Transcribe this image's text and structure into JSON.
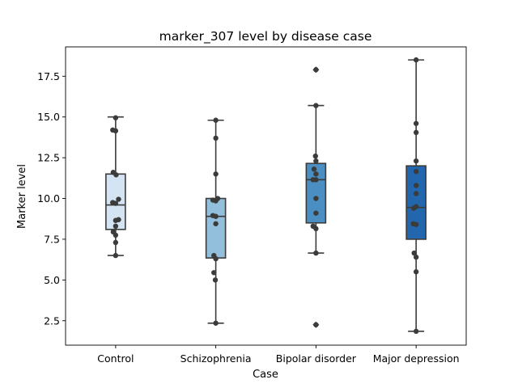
{
  "chart_data": {
    "type": "box",
    "title": "marker_307 level by disease case",
    "xlabel": "Case",
    "ylabel": "Marker level",
    "ylim": [
      1.0,
      19.3
    ],
    "yticks": [
      2.5,
      5.0,
      7.5,
      10.0,
      12.5,
      15.0,
      17.5
    ],
    "ytick_labels": [
      "2.5",
      "5.0",
      "7.5",
      "10.0",
      "12.5",
      "15.0",
      "17.5"
    ],
    "grid": false,
    "legend": "none",
    "categories": [
      "Control",
      "Schizophrenia",
      "Bipolar disorder",
      "Major depression"
    ],
    "colors": [
      "#d5e4f2",
      "#92bfdb",
      "#4a8ec2",
      "#2267ad"
    ],
    "edge_color": "#3b3b3b",
    "point_color": "#3b3b3b",
    "boxes": [
      {
        "whisker_low": 6.5,
        "q1": 8.1,
        "median": 9.6,
        "q3": 11.5,
        "whisker_high": 15.0,
        "outliers": []
      },
      {
        "whisker_low": 2.35,
        "q1": 6.35,
        "median": 8.9,
        "q3": 10.0,
        "whisker_high": 14.8,
        "outliers": []
      },
      {
        "whisker_low": 6.65,
        "q1": 8.5,
        "median": 11.15,
        "q3": 12.15,
        "whisker_high": 15.7,
        "outliers": [
          17.9,
          2.25
        ]
      },
      {
        "whisker_low": 1.85,
        "q1": 7.5,
        "median": 9.45,
        "q3": 12.0,
        "whisker_high": 18.5,
        "outliers": []
      }
    ],
    "points": [
      [
        {
          "v": 6.5,
          "j": 0.0
        },
        {
          "v": 7.3,
          "j": 0.0
        },
        {
          "v": 7.75,
          "j": 0.0
        },
        {
          "v": 7.95,
          "j": -0.25
        },
        {
          "v": 8.3,
          "j": 0.0
        },
        {
          "v": 8.65,
          "j": 0.0
        },
        {
          "v": 8.7,
          "j": 0.3
        },
        {
          "v": 9.7,
          "j": 0.0
        },
        {
          "v": 9.75,
          "j": -0.3
        },
        {
          "v": 9.95,
          "j": 0.3
        },
        {
          "v": 11.45,
          "j": 0.05
        },
        {
          "v": 11.6,
          "j": -0.25
        },
        {
          "v": 14.15,
          "j": 0.0
        },
        {
          "v": 14.2,
          "j": -0.3
        },
        {
          "v": 14.95,
          "j": 0.0
        }
      ],
      [
        {
          "v": 2.35,
          "j": 0.0
        },
        {
          "v": 5.0,
          "j": -0.05
        },
        {
          "v": 5.45,
          "j": -0.2
        },
        {
          "v": 6.3,
          "j": 0.0
        },
        {
          "v": 6.5,
          "j": -0.2
        },
        {
          "v": 8.45,
          "j": 0.0
        },
        {
          "v": 8.9,
          "j": 0.0
        },
        {
          "v": 8.95,
          "j": -0.3
        },
        {
          "v": 9.85,
          "j": 0.0
        },
        {
          "v": 9.9,
          "j": -0.3
        },
        {
          "v": 10.0,
          "j": 0.2
        },
        {
          "v": 11.5,
          "j": 0.0
        },
        {
          "v": 13.7,
          "j": 0.0
        },
        {
          "v": 14.8,
          "j": 0.0
        }
      ],
      [
        {
          "v": 6.65,
          "j": 0.0
        },
        {
          "v": 8.15,
          "j": 0.0
        },
        {
          "v": 8.3,
          "j": -0.3
        },
        {
          "v": 9.1,
          "j": 0.0
        },
        {
          "v": 10.0,
          "j": 0.0
        },
        {
          "v": 11.15,
          "j": 0.0
        },
        {
          "v": 11.15,
          "j": -0.3
        },
        {
          "v": 11.5,
          "j": 0.0
        },
        {
          "v": 11.8,
          "j": -0.2
        },
        {
          "v": 12.3,
          "j": 0.0
        },
        {
          "v": 12.6,
          "j": -0.05
        },
        {
          "v": 15.7,
          "j": 0.0
        },
        {
          "v": 17.9,
          "j": 0.0
        },
        {
          "v": 2.25,
          "j": 0.0
        }
      ],
      [
        {
          "v": 1.85,
          "j": 0.0
        },
        {
          "v": 5.5,
          "j": 0.0
        },
        {
          "v": 6.4,
          "j": 0.0
        },
        {
          "v": 6.65,
          "j": -0.2
        },
        {
          "v": 8.4,
          "j": 0.0
        },
        {
          "v": 8.45,
          "j": -0.3
        },
        {
          "v": 9.4,
          "j": -0.25
        },
        {
          "v": 9.5,
          "j": 0.0
        },
        {
          "v": 10.3,
          "j": 0.0
        },
        {
          "v": 10.8,
          "j": 0.0
        },
        {
          "v": 11.65,
          "j": 0.0
        },
        {
          "v": 12.3,
          "j": 0.0
        },
        {
          "v": 14.05,
          "j": 0.0
        },
        {
          "v": 14.6,
          "j": 0.0
        },
        {
          "v": 18.5,
          "j": 0.0
        }
      ]
    ]
  }
}
